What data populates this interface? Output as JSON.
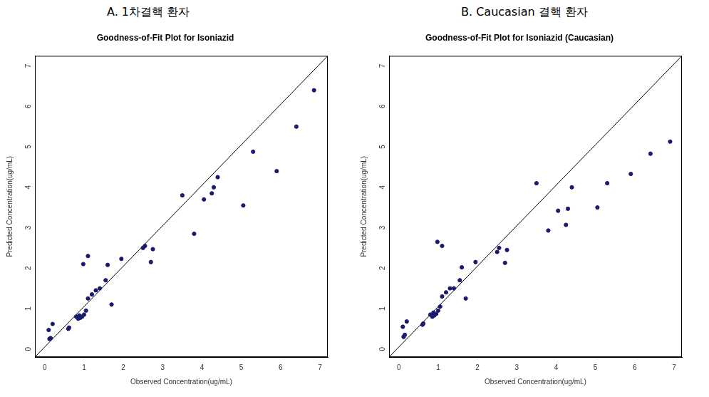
{
  "chart_data": [
    {
      "type": "scatter",
      "subtitle": "A. 1차결핵 환자",
      "title": "Goodness-of-Fit Plot for Isoniazid",
      "x_label": "Observed Concentration(ug/mL)",
      "y_label": "Predicted Concentration(ug/mL)",
      "xlim": [
        -0.25,
        7.2
      ],
      "ylim": [
        -0.25,
        7.2
      ],
      "xticks": [
        0,
        1,
        2,
        3,
        4,
        5,
        6,
        7
      ],
      "yticks": [
        0,
        1,
        2,
        3,
        4,
        5,
        6,
        7
      ],
      "grid": false,
      "series": [
        {
          "type": "scatter",
          "color": "#1a1a6e",
          "marker": "circle",
          "x": [
            0.1,
            0.12,
            0.15,
            0.2,
            0.6,
            0.62,
            0.8,
            0.85,
            0.88,
            0.9,
            0.95,
            0.98,
            1.0,
            1.05,
            1.1,
            1.1,
            1.2,
            1.3,
            1.4,
            1.55,
            1.6,
            1.7,
            1.95,
            2.5,
            2.55,
            2.7,
            2.75,
            3.5,
            3.8,
            4.05,
            4.25,
            4.3,
            4.4,
            5.05,
            5.3,
            5.9,
            6.4,
            6.85
          ],
          "values": [
            0.42,
            0.2,
            0.22,
            0.57,
            0.45,
            0.48,
            0.75,
            0.7,
            0.78,
            0.72,
            0.75,
            2.05,
            0.8,
            0.9,
            2.25,
            1.2,
            1.3,
            1.4,
            1.45,
            1.65,
            2.03,
            1.05,
            2.18,
            2.45,
            2.5,
            2.1,
            2.42,
            3.75,
            2.8,
            3.65,
            3.8,
            3.95,
            4.2,
            3.5,
            4.83,
            4.35,
            5.45,
            6.35
          ]
        },
        {
          "type": "line",
          "color": "#000000",
          "line_style": "solid",
          "x": [
            -0.25,
            7.2
          ],
          "values": [
            -0.25,
            7.2
          ]
        }
      ]
    },
    {
      "type": "scatter",
      "subtitle": "B. Caucasian 결핵 환자",
      "title": "Goodness-of-Fit Plot for Isoniazid (Caucasian)",
      "x_label": "Observed Concentration(ug/mL)",
      "y_label": "Predicted Concentration(ug/mL)",
      "xlim": [
        -0.25,
        7.2
      ],
      "ylim": [
        -0.25,
        7.2
      ],
      "xticks": [
        0,
        1,
        2,
        3,
        4,
        5,
        6,
        7
      ],
      "yticks": [
        0,
        1,
        2,
        3,
        4,
        5,
        6,
        7
      ],
      "grid": false,
      "series": [
        {
          "type": "scatter",
          "color": "#1a1a6e",
          "marker": "circle",
          "x": [
            0.1,
            0.12,
            0.15,
            0.2,
            0.6,
            0.62,
            0.8,
            0.85,
            0.88,
            0.9,
            0.95,
            0.98,
            1.0,
            1.05,
            1.1,
            1.1,
            1.2,
            1.3,
            1.4,
            1.55,
            1.6,
            1.7,
            1.95,
            2.5,
            2.55,
            2.7,
            2.75,
            3.5,
            3.8,
            4.05,
            4.25,
            4.3,
            4.4,
            5.05,
            5.3,
            5.9,
            6.4,
            6.9
          ],
          "values": [
            0.5,
            0.25,
            0.3,
            0.63,
            0.55,
            0.58,
            0.8,
            0.75,
            0.85,
            0.78,
            0.82,
            2.6,
            0.9,
            1.0,
            2.5,
            1.25,
            1.35,
            1.45,
            1.45,
            1.65,
            1.97,
            1.2,
            2.1,
            2.35,
            2.45,
            2.08,
            2.4,
            4.05,
            2.88,
            3.37,
            3.02,
            3.42,
            3.95,
            3.45,
            4.05,
            4.28,
            4.78,
            5.08
          ]
        },
        {
          "type": "line",
          "color": "#000000",
          "line_style": "solid",
          "x": [
            -0.25,
            7.2
          ],
          "values": [
            -0.25,
            7.2
          ]
        }
      ]
    }
  ]
}
